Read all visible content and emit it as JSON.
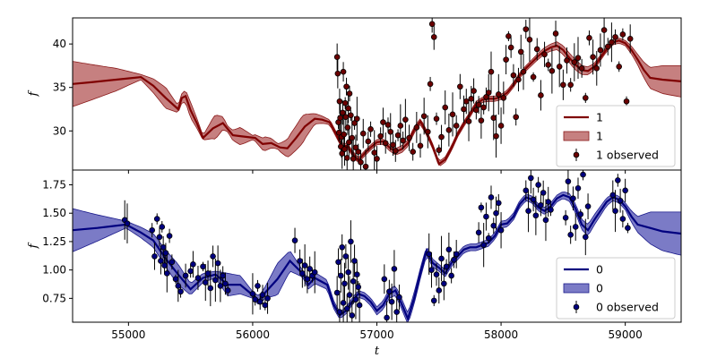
{
  "chart_data": [
    {
      "type": "line",
      "panel": "top",
      "xlabel": "",
      "ylabel": "f",
      "xlim": [
        54550,
        59450
      ],
      "ylim": [
        25.5,
        43.0
      ],
      "xticks": [],
      "yticks": [
        30,
        35,
        40
      ],
      "grid": false,
      "legend_placement": "lower-right",
      "colors": {
        "line": "#7f0000",
        "band": "#b86060",
        "band_edge": "#8b1a1a",
        "points": "#6b0000"
      },
      "series": [
        {
          "name": "1",
          "kind": "mean",
          "x": [
            54550,
            54700,
            54900,
            55100,
            55200,
            55300,
            55400,
            55430,
            55460,
            55500,
            55550,
            55600,
            55680,
            55760,
            55840,
            55900,
            55960,
            56020,
            56080,
            56150,
            56220,
            56280,
            56350,
            56420,
            56500,
            56560,
            56620,
            56680,
            56720,
            56760,
            56800,
            56850,
            56900,
            56950,
            57000,
            57050,
            57100,
            57150,
            57200,
            57250,
            57300,
            57350,
            57400,
            57450,
            57500,
            57550,
            57600,
            57650,
            57700,
            57750,
            57800,
            57850,
            57900,
            57950,
            58000,
            58050,
            58100,
            58150,
            58200,
            58250,
            58300,
            58350,
            58400,
            58450,
            58500,
            58550,
            58600,
            58650,
            58700,
            58750,
            58800,
            58850,
            58900,
            58950,
            59000,
            59050,
            59100,
            59150,
            59200,
            59300,
            59450
          ],
          "y": [
            35.4,
            35.6,
            35.9,
            36.2,
            35.2,
            33.8,
            32.5,
            33.8,
            34.0,
            32.4,
            30.9,
            29.2,
            30.3,
            30.9,
            29.5,
            29.4,
            29.3,
            29.2,
            28.5,
            28.6,
            28.1,
            28.0,
            29.2,
            30.5,
            31.4,
            31.3,
            31.0,
            29.4,
            28.2,
            28.3,
            27.5,
            26.6,
            27.4,
            28.1,
            28.7,
            28.8,
            28.1,
            27.6,
            27.9,
            28.6,
            30.1,
            31.1,
            29.8,
            28.2,
            26.2,
            26.7,
            28.0,
            29.6,
            30.8,
            31.9,
            33.1,
            33.6,
            33.7,
            33.7,
            33.9,
            34.4,
            35.3,
            36.4,
            37.2,
            37.9,
            38.6,
            39.2,
            39.6,
            39.8,
            39.3,
            38.4,
            37.6,
            37.0,
            36.9,
            37.4,
            38.4,
            39.4,
            40.2,
            40.4,
            40.1,
            39.3,
            38.2,
            37.0,
            36.1,
            35.9,
            35.7
          ]
        },
        {
          "name": "1",
          "kind": "confidence-band",
          "x": [
            54550,
            54900,
            55100,
            55200,
            55300,
            55400,
            55500,
            55600,
            55700,
            55800,
            55900,
            56000,
            56100,
            56200,
            56300,
            56400,
            56500,
            56600,
            56700,
            56800,
            57000,
            57200,
            57400,
            57600,
            57800,
            58000,
            58200,
            58400,
            58600,
            58800,
            59000,
            59100,
            59200,
            59300,
            59450
          ],
          "halfwidth": [
            2.6,
            1.3,
            0.3,
            0.8,
            1.2,
            0.4,
            0.9,
            0.25,
            1.4,
            0.3,
            1.0,
            0.25,
            0.8,
            0.3,
            1.2,
            1.6,
            0.6,
            0.3,
            0.3,
            0.3,
            0.3,
            0.4,
            0.3,
            0.3,
            0.3,
            0.3,
            0.3,
            0.4,
            0.6,
            0.3,
            0.3,
            0.6,
            1.2,
            1.6,
            1.8
          ]
        },
        {
          "name": "1 observed",
          "kind": "observations",
          "x": [
            56680,
            56685,
            56690,
            56695,
            56700,
            56705,
            56710,
            56715,
            56720,
            56725,
            56730,
            56735,
            56740,
            56745,
            56750,
            56755,
            56760,
            56765,
            56770,
            56775,
            56780,
            56790,
            56800,
            56810,
            56820,
            56830,
            56840,
            56850,
            56870,
            56890,
            56910,
            56930,
            56950,
            56980,
            57000,
            57030,
            57050,
            57070,
            57090,
            57110,
            57130,
            57150,
            57170,
            57190,
            57210,
            57230,
            57260,
            57290,
            57320,
            57350,
            57380,
            57410,
            57430,
            57445,
            57460,
            57480,
            57500,
            57520,
            57550,
            57580,
            57610,
            57640,
            57670,
            57700,
            57720,
            57740,
            57760,
            57780,
            57800,
            57820,
            57840,
            57860,
            57880,
            57900,
            57920,
            57940,
            57960,
            57980,
            58000,
            58020,
            58040,
            58060,
            58080,
            58100,
            58120,
            58140,
            58160,
            58180,
            58200,
            58230,
            58260,
            58290,
            58320,
            58350,
            58380,
            58410,
            58440,
            58470,
            58500,
            58530,
            58560,
            58590,
            58620,
            58650,
            58680,
            58710,
            58740,
            58770,
            58800,
            58830,
            58860,
            58890,
            58920,
            58950,
            58980,
            59010,
            59040
          ],
          "y": [
            38.5,
            36.6,
            31.0,
            29.8,
            33.4,
            31.5,
            28.2,
            29.3,
            27.4,
            32.1,
            36.8,
            29.6,
            27.9,
            33.2,
            31.6,
            35.1,
            26.9,
            30.4,
            32.6,
            28.7,
            34.3,
            31.8,
            29.2,
            26.8,
            30.9,
            28.1,
            31.4,
            27.6,
            26.4,
            29.7,
            25.9,
            28.8,
            30.2,
            27.5,
            26.8,
            29.4,
            31.0,
            28.6,
            30.7,
            29.9,
            28.4,
            27.7,
            29.5,
            30.6,
            28.9,
            31.3,
            29.2,
            27.6,
            30.4,
            28.3,
            31.7,
            29.9,
            35.4,
            42.3,
            40.8,
            31.4,
            27.8,
            29.3,
            32.7,
            30.1,
            31.9,
            30.6,
            35.1,
            32.5,
            33.4,
            31.1,
            33.7,
            34.6,
            32.4,
            33.0,
            31.2,
            32.7,
            33.9,
            34.4,
            36.8,
            31.5,
            29.4,
            34.2,
            30.6,
            33.8,
            38.2,
            40.9,
            39.6,
            36.4,
            31.6,
            35.9,
            39.1,
            36.8,
            41.7,
            40.5,
            36.2,
            39.4,
            34.1,
            38.8,
            37.6,
            36.9,
            41.2,
            37.4,
            35.3,
            38.1,
            35.3,
            37.9,
            38.4,
            37.2,
            33.8,
            40.7,
            38.5,
            37.2,
            39.3,
            41.6,
            39.7,
            40.2,
            40.8,
            37.4,
            41.1,
            33.4,
            40.6
          ]
        }
      ]
    },
    {
      "type": "line",
      "panel": "bottom",
      "xlabel": "t",
      "ylabel": "f",
      "xlim": [
        54550,
        59450
      ],
      "ylim": [
        0.54,
        1.88
      ],
      "xticks": [
        55000,
        56000,
        57000,
        58000,
        59000
      ],
      "yticks": [
        0.75,
        1.0,
        1.25,
        1.5,
        1.75
      ],
      "ytick_labels": [
        "0.75",
        "1.00",
        "1.25",
        "1.50",
        "1.75"
      ],
      "grid": false,
      "legend_placement": "lower-right",
      "colors": {
        "line": "#00007f",
        "band": "#5a5ab8",
        "band_edge": "#1a1a8b",
        "points": "#00007f"
      },
      "series": [
        {
          "name": "0",
          "kind": "mean",
          "x": [
            54550,
            54750,
            54980,
            55100,
            55200,
            55300,
            55400,
            55500,
            55600,
            55700,
            55800,
            55900,
            56000,
            56050,
            56100,
            56200,
            56300,
            56400,
            56450,
            56500,
            56600,
            56650,
            56700,
            56750,
            56800,
            56850,
            56900,
            56950,
            57000,
            57050,
            57100,
            57150,
            57200,
            57250,
            57300,
            57350,
            57400,
            57450,
            57500,
            57550,
            57600,
            57650,
            57700,
            57750,
            57800,
            57850,
            57900,
            57950,
            58000,
            58050,
            58100,
            58150,
            58200,
            58250,
            58300,
            58350,
            58400,
            58450,
            58500,
            58550,
            58600,
            58650,
            58700,
            58750,
            58800,
            58850,
            58900,
            58950,
            59000,
            59050,
            59100,
            59200,
            59300,
            59450
          ],
          "y": [
            1.35,
            1.37,
            1.4,
            1.33,
            1.26,
            1.1,
            0.96,
            0.83,
            0.93,
            0.96,
            0.87,
            0.87,
            0.78,
            0.73,
            0.8,
            0.92,
            1.08,
            0.97,
            0.87,
            0.93,
            0.87,
            0.7,
            0.6,
            0.64,
            0.72,
            0.79,
            0.77,
            0.72,
            0.64,
            0.69,
            0.79,
            0.82,
            0.7,
            0.57,
            0.75,
            0.97,
            1.17,
            1.06,
            1.02,
            0.97,
            1.06,
            1.12,
            1.18,
            1.2,
            1.2,
            1.22,
            1.24,
            1.3,
            1.4,
            1.41,
            1.47,
            1.58,
            1.64,
            1.62,
            1.55,
            1.52,
            1.56,
            1.63,
            1.66,
            1.64,
            1.54,
            1.4,
            1.35,
            1.44,
            1.52,
            1.6,
            1.64,
            1.62,
            1.56,
            1.47,
            1.4,
            1.37,
            1.34,
            1.32
          ]
        },
        {
          "name": "0",
          "kind": "confidence-band",
          "x": [
            54550,
            54980,
            55200,
            55400,
            55500,
            55700,
            55800,
            55900,
            56000,
            56100,
            56200,
            56300,
            56400,
            56500,
            56700,
            56900,
            57100,
            57300,
            57500,
            57700,
            57900,
            58100,
            58300,
            58500,
            58700,
            58900,
            59000,
            59100,
            59200,
            59300,
            59450
          ],
          "halfwidth": [
            0.19,
            0.03,
            0.06,
            0.09,
            0.05,
            0.03,
            0.1,
            0.08,
            0.03,
            0.05,
            0.14,
            0.09,
            0.03,
            0.05,
            0.03,
            0.03,
            0.04,
            0.05,
            0.03,
            0.03,
            0.03,
            0.03,
            0.03,
            0.03,
            0.05,
            0.03,
            0.03,
            0.07,
            0.14,
            0.17,
            0.19
          ]
        },
        {
          "name": "0 observed",
          "kind": "observations",
          "x": [
            54970,
            54990,
            55190,
            55210,
            55230,
            55250,
            55260,
            55270,
            55280,
            55290,
            55300,
            55310,
            55330,
            55350,
            55380,
            55400,
            55420,
            55460,
            55500,
            55520,
            55560,
            55600,
            55620,
            55640,
            55660,
            55680,
            55700,
            55720,
            55740,
            55760,
            55780,
            55800,
            56000,
            56020,
            56040,
            56060,
            56080,
            56100,
            56120,
            56340,
            56380,
            56400,
            56420,
            56440,
            56460,
            56480,
            56500,
            56680,
            56690,
            56700,
            56710,
            56720,
            56730,
            56740,
            56750,
            56760,
            56770,
            56780,
            56790,
            56800,
            56810,
            56820,
            56830,
            56840,
            56850,
            56860,
            57060,
            57080,
            57100,
            57120,
            57140,
            57160,
            57180,
            57420,
            57440,
            57460,
            57480,
            57500,
            57520,
            57540,
            57560,
            57580,
            57600,
            57620,
            57640,
            57820,
            57840,
            57860,
            57880,
            57900,
            57920,
            57940,
            57960,
            57980,
            58000,
            58200,
            58220,
            58240,
            58260,
            58280,
            58300,
            58320,
            58340,
            58360,
            58380,
            58400,
            58520,
            58540,
            58560,
            58580,
            58600,
            58620,
            58640,
            58660,
            58680,
            58700,
            58900,
            58920,
            58940,
            58960,
            58980,
            59000,
            59020
          ],
          "y": [
            1.44,
            1.41,
            1.35,
            1.12,
            1.45,
            1.29,
            1.08,
            1.38,
            1.2,
            1.04,
            1.15,
            0.97,
            1.3,
            1.07,
            0.92,
            0.86,
            0.81,
            0.95,
            0.99,
            1.05,
            0.93,
            1.03,
            0.89,
            0.97,
            0.84,
            1.12,
            0.91,
            1.06,
            0.86,
            0.95,
            0.88,
            0.82,
            0.79,
            0.74,
            0.86,
            0.72,
            0.78,
            0.69,
            0.75,
            1.26,
            1.08,
            0.97,
            1.04,
            0.92,
            1.01,
            0.95,
            0.98,
            0.8,
            1.07,
            0.63,
            0.95,
            1.2,
            0.71,
            0.88,
            1.12,
            0.66,
            0.98,
            0.78,
            1.25,
            0.6,
            0.9,
            1.08,
            0.74,
            0.96,
            0.85,
            0.69,
            0.92,
            0.58,
            0.81,
            0.72,
            1.01,
            0.63,
            0.76,
            1.14,
            1.0,
            0.73,
            0.96,
            0.82,
            1.1,
            0.88,
            1.03,
            1.18,
            0.95,
            1.09,
            1.14,
            1.33,
            1.55,
            1.22,
            1.47,
            1.28,
            1.64,
            1.39,
            1.5,
            1.59,
            1.35,
            1.7,
            1.52,
            1.81,
            1.62,
            1.48,
            1.75,
            1.57,
            1.68,
            1.44,
            1.6,
            1.53,
            1.46,
            1.78,
            1.31,
            1.63,
            1.38,
            1.72,
            1.49,
            1.84,
            1.29,
            1.56,
            1.66,
            1.52,
            1.79,
            1.61,
            1.45,
            1.7,
            1.37
          ]
        }
      ]
    }
  ]
}
